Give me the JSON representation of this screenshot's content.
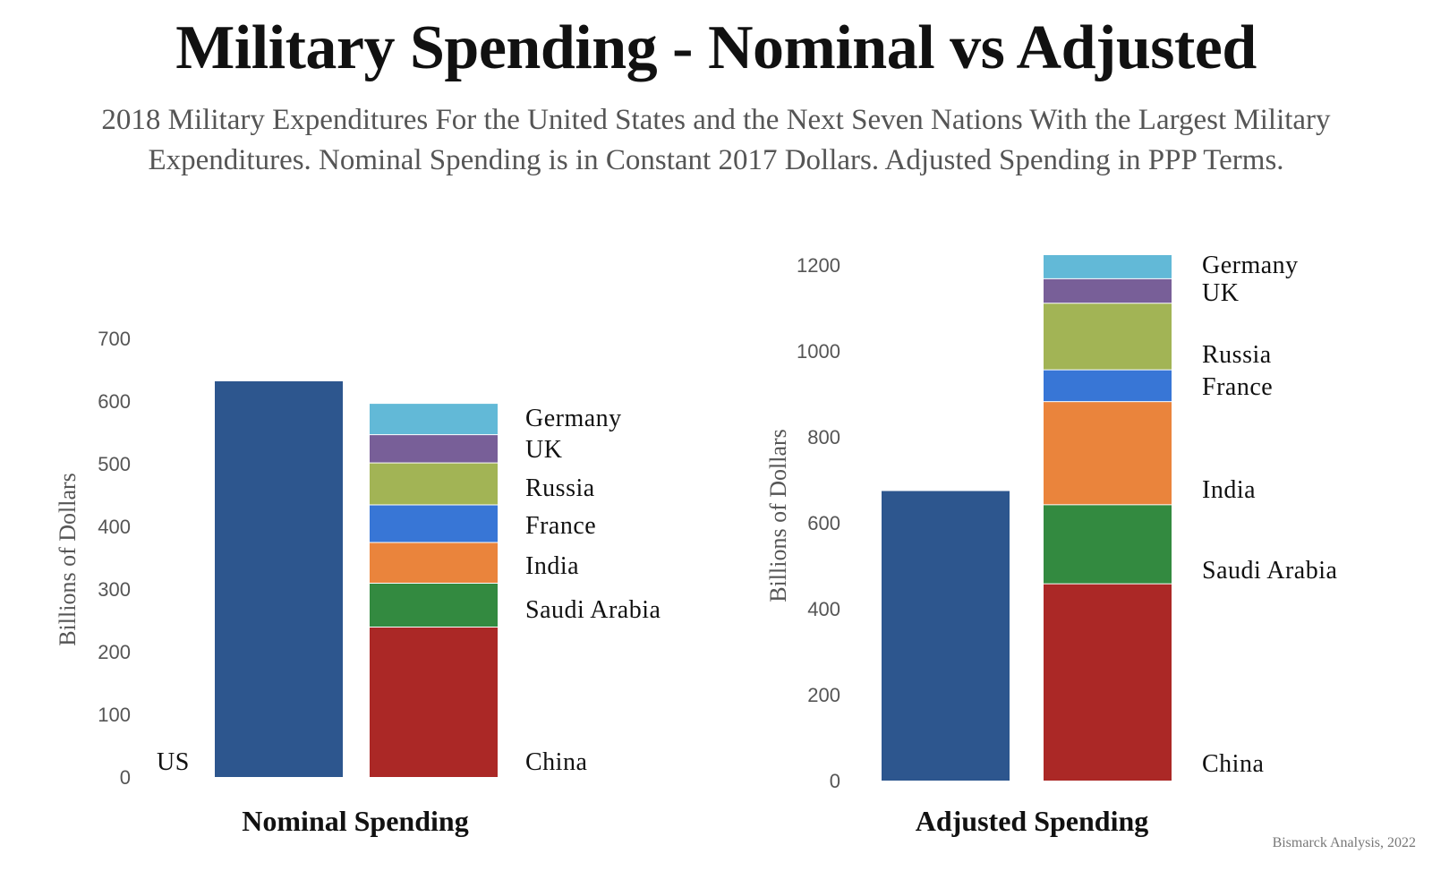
{
  "title": "Military Spending - Nominal vs Adjusted",
  "subtitle_lines": [
    "2018 Military Expenditures For the United States and the Next Seven Nations With the Largest Military",
    "Expenditures. Nominal Spending is in Constant 2017 Dollars. Adjusted Spending in PPP Terms."
  ],
  "credit": "Bismarck Analysis, 2022",
  "colors": {
    "US": "#2d568e",
    "China": "#ab2826",
    "Saudi Arabia": "#338a40",
    "India": "#ea843c",
    "France": "#3876d6",
    "Russia": "#a2b455",
    "UK": "#785f98",
    "Germany": "#62b9d7"
  },
  "chart_data": [
    {
      "type": "bar",
      "stacked": true,
      "xlabel": "Nominal Spending",
      "ylabel": "Billions of Dollars",
      "ylim": [
        0,
        700
      ],
      "yticks": [
        0,
        100,
        200,
        300,
        400,
        500,
        600,
        700
      ],
      "bars": [
        {
          "segments": [
            {
              "name": "US",
              "value": 633
            }
          ]
        },
        {
          "segments": [
            {
              "name": "China",
              "value": 240
            },
            {
              "name": "Saudi Arabia",
              "value": 70
            },
            {
              "name": "India",
              "value": 65
            },
            {
              "name": "France",
              "value": 60
            },
            {
              "name": "Russia",
              "value": 67
            },
            {
              "name": "UK",
              "value": 45
            },
            {
              "name": "Germany",
              "value": 50
            }
          ]
        }
      ],
      "bar_labels": [
        "US",
        "China",
        "Saudi Arabia",
        "India",
        "France",
        "Russia",
        "UK",
        "Germany"
      ]
    },
    {
      "type": "bar",
      "stacked": true,
      "xlabel": "Adjusted Spending",
      "ylabel": "Billions of Dollars",
      "ylim": [
        0,
        1200
      ],
      "yticks": [
        0,
        200,
        400,
        600,
        800,
        1000,
        1200
      ],
      "bars": [
        {
          "segments": [
            {
              "name": "US",
              "value": 676
            }
          ]
        },
        {
          "segments": [
            {
              "name": "China",
              "value": 459
            },
            {
              "name": "Saudi Arabia",
              "value": 184
            },
            {
              "name": "India",
              "value": 240
            },
            {
              "name": "France",
              "value": 74
            },
            {
              "name": "Russia",
              "value": 155
            },
            {
              "name": "UK",
              "value": 57
            },
            {
              "name": "Germany",
              "value": 56
            }
          ]
        }
      ],
      "bar_labels": [
        "China",
        "Saudi Arabia",
        "India",
        "France",
        "Russia",
        "UK",
        "Germany"
      ]
    }
  ]
}
